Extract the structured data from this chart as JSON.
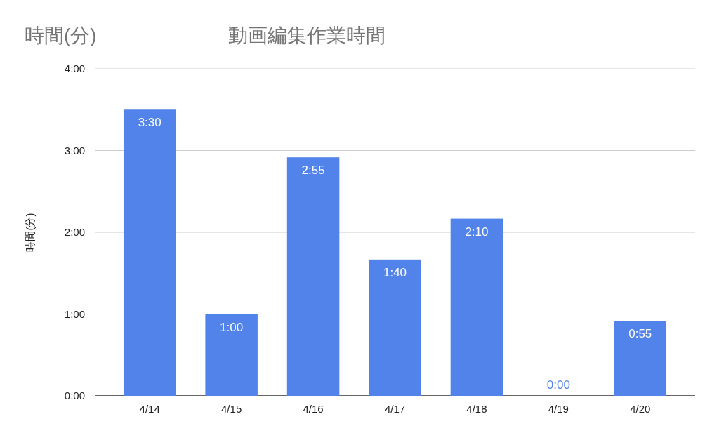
{
  "chart_data": {
    "type": "bar",
    "title": "動画編集作業時間",
    "ylabel": "時間(分)",
    "annotations": [
      "時間(分)"
    ],
    "categories": [
      "4/14",
      "4/15",
      "4/16",
      "4/17",
      "4/18",
      "4/19",
      "4/20"
    ],
    "series": [
      {
        "color": "#5183ea",
        "values": [
          3.5,
          1,
          2.9167,
          1.6667,
          2.1667,
          0,
          0.9167
        ]
      }
    ],
    "value_labels": [
      "3:30",
      "1:00",
      "2:55",
      "1:40",
      "2:10",
      "0:00",
      "0:55"
    ],
    "ylim": [
      0,
      4
    ],
    "yticks": [
      {
        "value": 0,
        "label": "0:00"
      },
      {
        "value": 1,
        "label": "1:00"
      },
      {
        "value": 2,
        "label": "2:00"
      },
      {
        "value": 3,
        "label": "3:00"
      },
      {
        "value": 4,
        "label": "4:00"
      }
    ],
    "grid": "y"
  }
}
